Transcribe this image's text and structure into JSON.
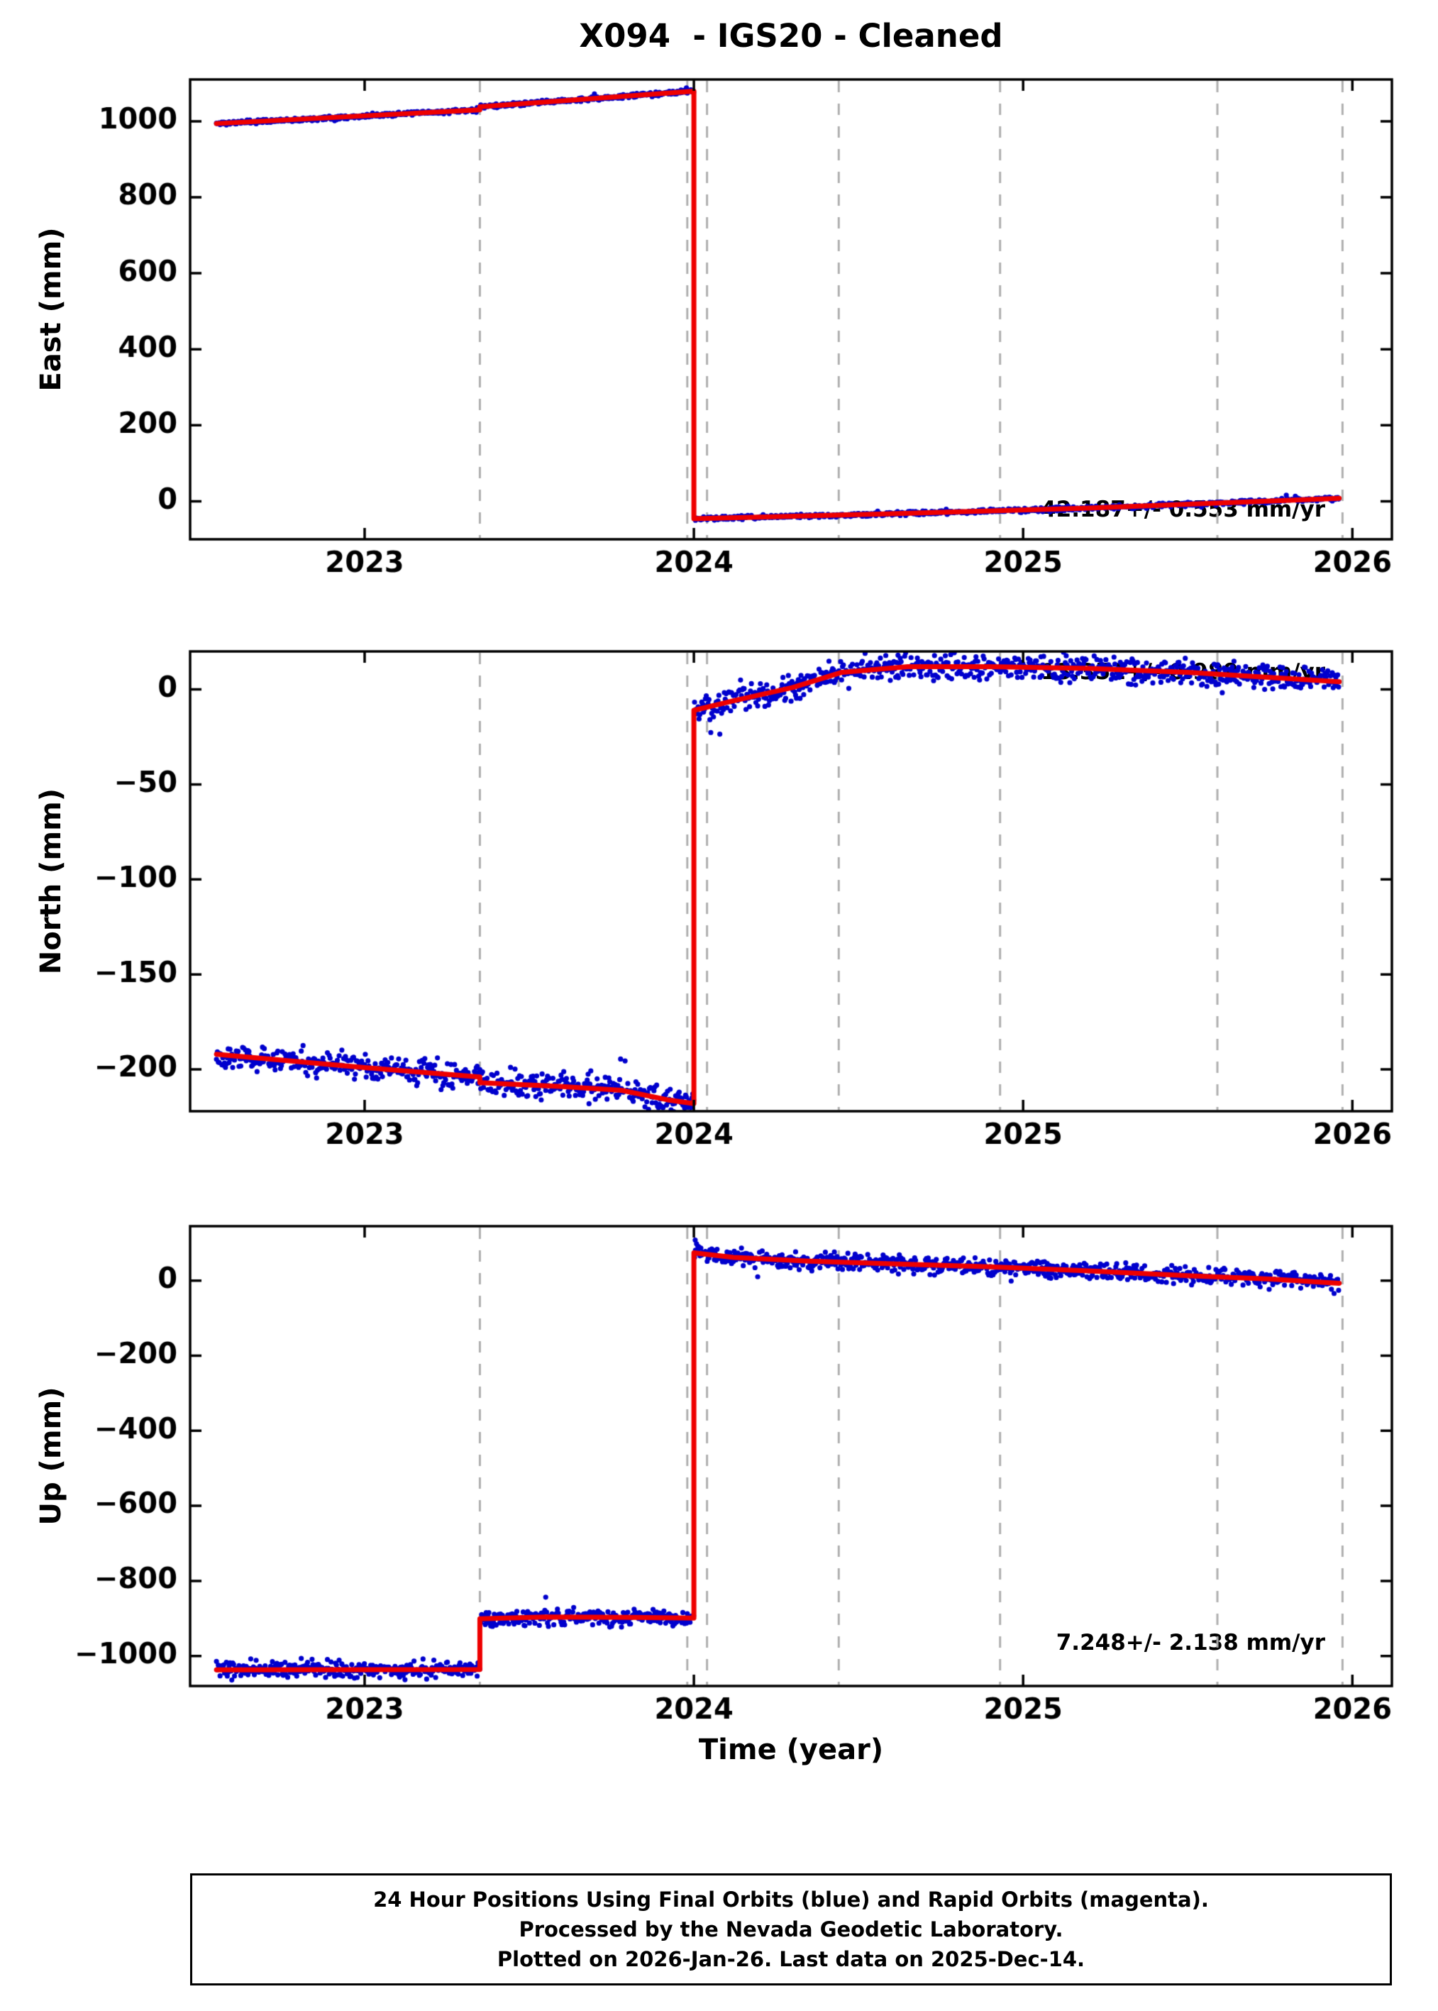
{
  "title": "X094  - IGS20 - Cleaned",
  "xlabel": "Time (year)",
  "footer": {
    "line1": "24 Hour Positions Using Final Orbits (blue) and Rapid Orbits (magenta).",
    "line2": "Processed by the Nevada Geodetic Laboratory.",
    "line3": "Plotted on 2026-Jan-26. Last data on 2025-Dec-14."
  },
  "colors": {
    "dots_final": "#0000CD",
    "trend_line": "#EE0000",
    "vline": "#AFAFAF",
    "axis": "#000000"
  },
  "chart_data": [
    {
      "type": "scatter",
      "name": "east",
      "ylabel": "East (mm)",
      "annotation": "42.187+/- 0.553 mm/yr",
      "xlim": [
        2022.47,
        2026.12
      ],
      "ylim": [
        -100,
        1110
      ],
      "xticks": [
        2023,
        2024,
        2025,
        2026
      ],
      "yticks": [
        0,
        200,
        400,
        600,
        800,
        1000
      ],
      "vlines": [
        2023.35,
        2023.98,
        2024.04,
        2024.44,
        2024.93,
        2025.59,
        2025.97
      ],
      "model": [
        [
          2022.55,
          994
        ],
        [
          2023.35,
          1030
        ],
        [
          2023.35,
          1038
        ],
        [
          2024.0,
          1079
        ],
        [
          2024.0,
          -46
        ],
        [
          2024.6,
          -33
        ],
        [
          2025.2,
          -18
        ],
        [
          2025.96,
          8
        ]
      ],
      "noise_mm": 2.5,
      "sample": [
        2022.55,
        2025.96
      ],
      "seed": 11,
      "extra_points": []
    },
    {
      "type": "scatter",
      "name": "north",
      "ylabel": "North (mm)",
      "annotation": "13.351+/- 0.989 mm/yr",
      "xlim": [
        2022.47,
        2026.12
      ],
      "ylim": [
        -222,
        20
      ],
      "xticks": [
        2023,
        2024,
        2025,
        2026
      ],
      "yticks": [
        0,
        -50,
        -100,
        -150,
        -200
      ],
      "vlines": [
        2023.35,
        2023.98,
        2024.04,
        2024.44,
        2024.93,
        2025.59,
        2025.97
      ],
      "model": [
        [
          2022.55,
          -192
        ],
        [
          2023.0,
          -199
        ],
        [
          2023.35,
          -204
        ],
        [
          2023.35,
          -207
        ],
        [
          2023.6,
          -209
        ],
        [
          2023.78,
          -211
        ],
        [
          2023.92,
          -216
        ],
        [
          2024.0,
          -218
        ],
        [
          2024.0,
          -11
        ],
        [
          2024.12,
          -6
        ],
        [
          2024.3,
          1
        ],
        [
          2024.45,
          9
        ],
        [
          2024.65,
          12
        ],
        [
          2024.9,
          12
        ],
        [
          2025.2,
          11
        ],
        [
          2025.5,
          9
        ],
        [
          2025.96,
          4
        ]
      ],
      "noise_mm": 3.2,
      "sample": [
        2022.55,
        2025.96
      ],
      "seed": 22,
      "extra_points": [
        [
          2024.46,
          22
        ],
        [
          2024.52,
          19
        ],
        [
          2024.62,
          18
        ]
      ]
    },
    {
      "type": "scatter",
      "name": "up",
      "ylabel": "Up (mm)",
      "annotation": "7.248+/- 2.138 mm/yr",
      "xlim": [
        2022.47,
        2026.12
      ],
      "ylim": [
        -1080,
        145
      ],
      "xticks": [
        2023,
        2024,
        2025,
        2026
      ],
      "yticks": [
        0,
        -200,
        -400,
        -600,
        -800,
        -1000
      ],
      "vlines": [
        2023.35,
        2023.98,
        2024.04,
        2024.44,
        2024.93,
        2025.59,
        2025.97
      ],
      "model": [
        [
          2022.55,
          -1037
        ],
        [
          2023.35,
          -1036
        ],
        [
          2023.35,
          -901
        ],
        [
          2023.55,
          -896
        ],
        [
          2023.8,
          -897
        ],
        [
          2024.0,
          -899
        ],
        [
          2024.0,
          74
        ],
        [
          2024.12,
          62
        ],
        [
          2024.35,
          52
        ],
        [
          2024.6,
          45
        ],
        [
          2024.9,
          37
        ],
        [
          2025.2,
          26
        ],
        [
          2025.5,
          13
        ],
        [
          2025.75,
          4
        ],
        [
          2025.96,
          -7
        ]
      ],
      "noise_mm": 11,
      "sample": [
        2022.55,
        2025.96
      ],
      "seed": 33,
      "extra_points": [
        [
          2024.004,
          108
        ],
        [
          2024.008,
          98
        ],
        [
          2024.012,
          92
        ],
        [
          2024.016,
          86
        ]
      ]
    }
  ]
}
